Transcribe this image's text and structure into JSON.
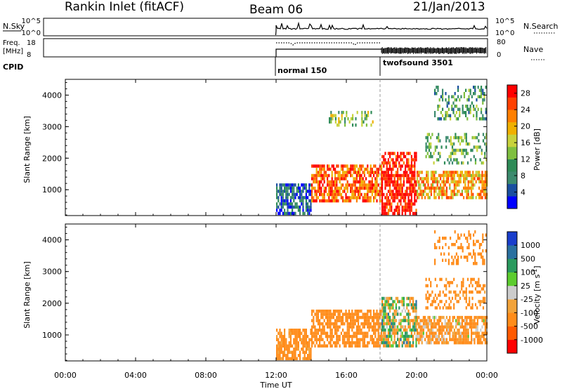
{
  "header": {
    "station": "Rankin Inlet (fitACF)",
    "beam": "Beam 06",
    "date": "21/Jan/2013"
  },
  "nsky_panel": {
    "left_label": "N.Sky",
    "left_ticks": [
      "10^5",
      "10^0"
    ],
    "right_ticks": [
      "10^5",
      "10^0"
    ],
    "right_label": "N.Search"
  },
  "freq_panel": {
    "left_label_1": "Freq.",
    "left_label_2": "[MHz]",
    "left_ticks": [
      "18",
      "8"
    ],
    "right_ticks": [
      "80",
      "0"
    ],
    "right_label": "Nave"
  },
  "cpid": {
    "label": "CPID",
    "modes": [
      "normal 150",
      "twofsound 3501"
    ]
  },
  "colors": {
    "power_scale": [
      "#0000ff",
      "#1a4fa0",
      "#3c8a6e",
      "#2e8b57",
      "#7fbf3f",
      "#c8d23c",
      "#f0b000",
      "#ff7f00",
      "#ff4000",
      "#ff0000"
    ],
    "velocity_scale": [
      "#ff0000",
      "#ff5a00",
      "#ff8c1a",
      "#f2a33a",
      "#cccccc",
      "#5ccc2e",
      "#2a9a5e",
      "#2a70a0",
      "#1a3ecc"
    ]
  },
  "chart_data": [
    {
      "type": "heatmap",
      "name": "power",
      "ylabel": "Slant Range [km]",
      "xlabel": "",
      "x_ticks": [
        "00:00",
        "04:00",
        "08:00",
        "12:00",
        "16:00",
        "20:00",
        "00:00"
      ],
      "x_range_hours": [
        0,
        24
      ],
      "y_ticks": [
        1000,
        2000,
        3000,
        4000
      ],
      "ylim": [
        180,
        4500
      ],
      "data_start_hour": 12.0,
      "mode_change_hour": 18.0,
      "colorbar": {
        "label": "Power [dB]",
        "ticks": [
          4,
          8,
          12,
          16,
          20,
          24,
          28
        ],
        "range": [
          0,
          30
        ]
      },
      "echo_bands": [
        {
          "from_hour": 12.0,
          "to_hour": 14.0,
          "range_km": [
            200,
            1200
          ],
          "mean_db": 6
        },
        {
          "from_hour": 14.0,
          "to_hour": 18.0,
          "range_km": [
            600,
            1800
          ],
          "mean_db": 24
        },
        {
          "from_hour": 18.0,
          "to_hour": 20.0,
          "range_km": [
            200,
            2200
          ],
          "mean_db": 28
        },
        {
          "from_hour": 20.0,
          "to_hour": 24.0,
          "range_km": [
            700,
            1600
          ],
          "mean_db": 20
        },
        {
          "from_hour": 20.5,
          "to_hour": 24.0,
          "range_km": [
            1800,
            2800
          ],
          "mean_db": 12
        },
        {
          "from_hour": 21.0,
          "to_hour": 24.0,
          "range_km": [
            3200,
            4300
          ],
          "mean_db": 10
        },
        {
          "from_hour": 15.0,
          "to_hour": 17.5,
          "range_km": [
            3000,
            3500
          ],
          "mean_db": 14
        }
      ]
    },
    {
      "type": "heatmap",
      "name": "velocity",
      "ylabel": "Slant Range [km]",
      "xlabel": "Time UT",
      "x_ticks": [
        "00:00",
        "04:00",
        "08:00",
        "12:00",
        "16:00",
        "20:00",
        "00:00"
      ],
      "x_range_hours": [
        0,
        24
      ],
      "y_ticks": [
        1000,
        2000,
        3000,
        4000
      ],
      "ylim": [
        180,
        4500
      ],
      "data_start_hour": 12.0,
      "mode_change_hour": 18.0,
      "colorbar": {
        "label": "Velocity [m s^-1]",
        "ticks": [
          "1000",
          "500",
          "100",
          "25",
          "-25",
          "-100",
          "-500",
          "-1000"
        ]
      },
      "echo_bands": [
        {
          "from_hour": 12.0,
          "to_hour": 14.0,
          "range_km": [
            200,
            1200
          ],
          "mean_ms": -200
        },
        {
          "from_hour": 14.0,
          "to_hour": 18.0,
          "range_km": [
            600,
            1800
          ],
          "mean_ms": -300
        },
        {
          "from_hour": 18.0,
          "to_hour": 20.0,
          "range_km": [
            600,
            2200
          ],
          "mean_ms": -20
        },
        {
          "from_hour": 20.0,
          "to_hour": 24.0,
          "range_km": [
            700,
            1600
          ],
          "mean_ms": -150
        },
        {
          "from_hour": 20.5,
          "to_hour": 24.0,
          "range_km": [
            1800,
            2800
          ],
          "mean_ms": -200
        },
        {
          "from_hour": 21.0,
          "to_hour": 24.0,
          "range_km": [
            3200,
            4300
          ],
          "mean_ms": -300
        }
      ]
    }
  ]
}
